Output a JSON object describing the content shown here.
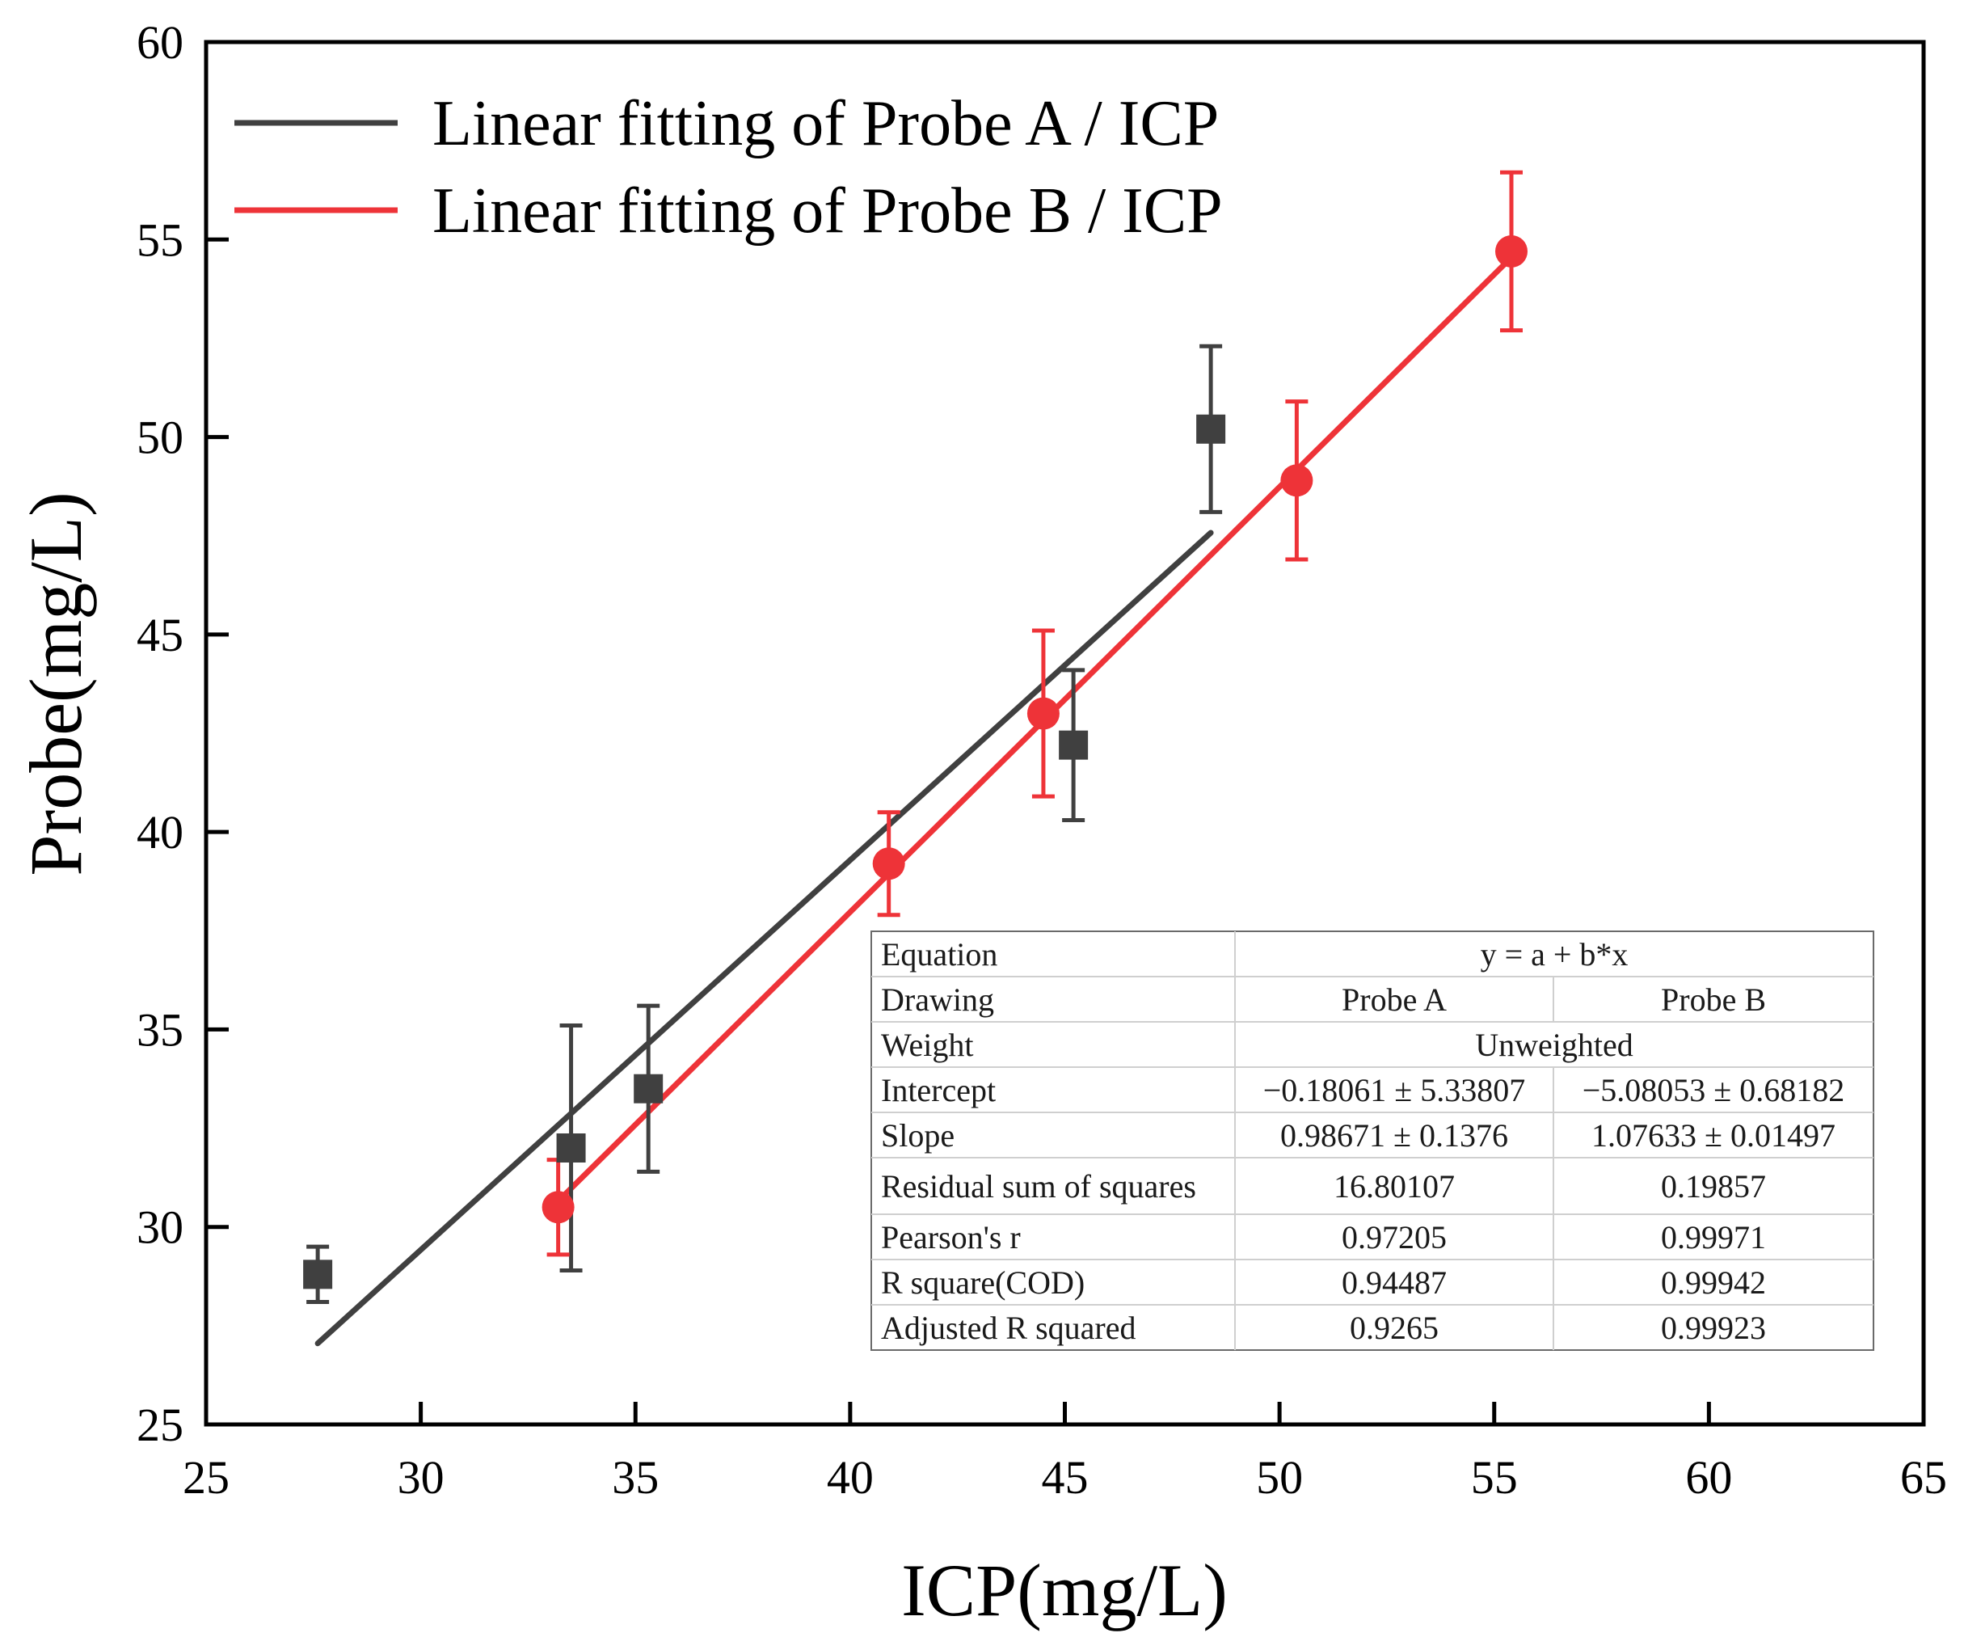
{
  "chart_data": {
    "type": "scatter",
    "title": "",
    "xlabel": "ICP(mg/L)",
    "ylabel": "Probe(mg/L)",
    "xlim": [
      25,
      65
    ],
    "ylim": [
      25,
      60
    ],
    "xticks": [
      "25",
      "30",
      "35",
      "40",
      "45",
      "50",
      "55",
      "60",
      "65"
    ],
    "yticks": [
      "25",
      "30",
      "35",
      "40",
      "45",
      "50",
      "55",
      "60"
    ],
    "legend_position": "top-left",
    "series": [
      {
        "name": "Probe A",
        "fit_label": "Linear fitting of Probe A / ICP",
        "color": "#404040",
        "marker": "square",
        "points": [
          {
            "x": 27.6,
            "y": 28.8,
            "err": 0.7
          },
          {
            "x": 33.5,
            "y": 32.0,
            "err": 3.1
          },
          {
            "x": 35.3,
            "y": 33.5,
            "err": 2.1
          },
          {
            "x": 45.2,
            "y": 42.2,
            "err": 1.9
          },
          {
            "x": 48.4,
            "y": 50.2,
            "err": 2.1
          }
        ],
        "fit": {
          "intercept": -0.18061,
          "slope": 0.98671,
          "x_start": 27.6,
          "x_end": 48.4
        }
      },
      {
        "name": "Probe B",
        "fit_label": "Linear fitting of Probe B / ICP",
        "color": "#ee3338",
        "marker": "circle",
        "points": [
          {
            "x": 33.2,
            "y": 30.5,
            "err": 1.2
          },
          {
            "x": 40.9,
            "y": 39.2,
            "err": 1.3
          },
          {
            "x": 44.5,
            "y": 43.0,
            "err": 2.1
          },
          {
            "x": 50.4,
            "y": 48.9,
            "err": 2.0
          },
          {
            "x": 55.4,
            "y": 54.7,
            "err": 2.0
          }
        ],
        "fit": {
          "intercept": -5.08053,
          "slope": 1.07633,
          "x_start": 33.2,
          "x_end": 55.4
        }
      }
    ],
    "stats_table": {
      "rows": [
        {
          "label": "Equation",
          "span": "y = a + b*x"
        },
        {
          "label": "Drawing",
          "a": "Probe A",
          "b": "Probe B"
        },
        {
          "label": "Weight",
          "span": "Unweighted"
        },
        {
          "label": "Intercept",
          "a": "−0.18061 ± 5.33807",
          "b": "−5.08053 ± 0.68182"
        },
        {
          "label": "Slope",
          "a": "0.98671 ± 0.1376",
          "b": "1.07633 ± 0.01497"
        },
        {
          "label": "Residual sum of squares",
          "a": "16.80107",
          "b": "0.19857"
        },
        {
          "label": "Pearson's r",
          "a": "0.97205",
          "b": "0.99971"
        },
        {
          "label": "R square(COD)",
          "a": "0.94487",
          "b": "0.99942"
        },
        {
          "label": "Adjusted R squared",
          "a": "0.9265",
          "b": "0.99923"
        }
      ]
    }
  }
}
